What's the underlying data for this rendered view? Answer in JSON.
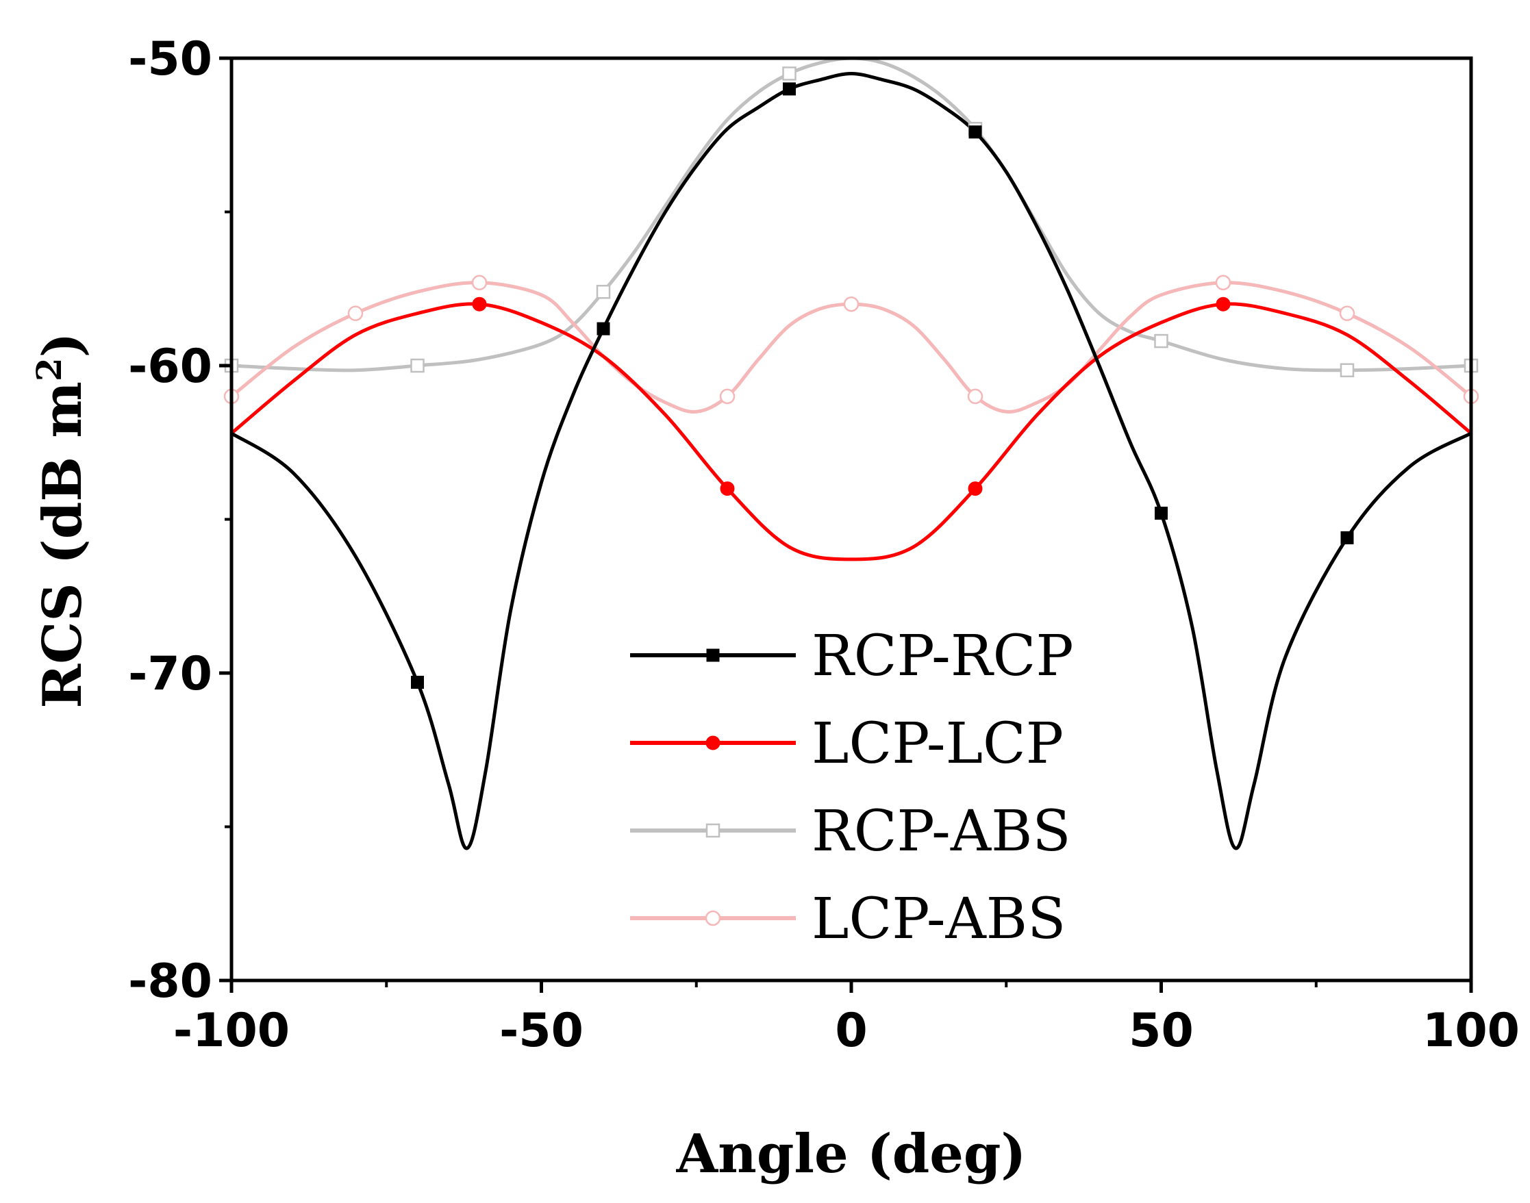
{
  "chart_data": {
    "type": "line",
    "title": "",
    "xlabel": "Angle (deg)",
    "ylabel_main": "RCS (dB m",
    "ylabel_sup": "2",
    "ylabel_close": ")",
    "xlim": [
      -100,
      100
    ],
    "ylim": [
      -80,
      -50
    ],
    "x_ticks": [
      -100,
      -50,
      0,
      50,
      100
    ],
    "x_tick_labels": [
      "-100",
      "-50",
      "0",
      "50",
      "100"
    ],
    "y_ticks": [
      -80,
      -70,
      -60,
      -50
    ],
    "y_tick_labels": [
      "-80",
      "-70",
      "-60",
      "-50"
    ],
    "legend_position": "lower-center",
    "series": [
      {
        "name": "RCP-RCP",
        "color": "#000000",
        "marker": "filled-square",
        "curve": [
          [
            -100,
            -62.2
          ],
          [
            -90,
            -63.5
          ],
          [
            -80,
            -66.2
          ],
          [
            -70,
            -70.3
          ],
          [
            -65,
            -73.6
          ],
          [
            -62,
            -75.7
          ],
          [
            -59,
            -73.2
          ],
          [
            -55,
            -68.0
          ],
          [
            -50,
            -63.8
          ],
          [
            -45,
            -61.0
          ],
          [
            -40,
            -58.8
          ],
          [
            -35,
            -56.8
          ],
          [
            -30,
            -55.0
          ],
          [
            -25,
            -53.5
          ],
          [
            -20,
            -52.3
          ],
          [
            -15,
            -51.6
          ],
          [
            -10,
            -51.0
          ],
          [
            -5,
            -50.7
          ],
          [
            0,
            -50.5
          ],
          [
            5,
            -50.7
          ],
          [
            10,
            -51.0
          ],
          [
            15,
            -51.6
          ],
          [
            20,
            -52.4
          ],
          [
            25,
            -53.7
          ],
          [
            30,
            -55.5
          ],
          [
            35,
            -57.6
          ],
          [
            40,
            -60.0
          ],
          [
            45,
            -62.5
          ],
          [
            50,
            -64.8
          ],
          [
            55,
            -68.5
          ],
          [
            59,
            -73.2
          ],
          [
            62,
            -75.7
          ],
          [
            65,
            -73.6
          ],
          [
            70,
            -69.5
          ],
          [
            80,
            -65.6
          ],
          [
            90,
            -63.3
          ],
          [
            100,
            -62.2
          ]
        ],
        "markers": [
          [
            -70,
            -70.3
          ],
          [
            -40,
            -58.8
          ],
          [
            -10,
            -51.0
          ],
          [
            20,
            -52.4
          ],
          [
            50,
            -64.8
          ],
          [
            80,
            -65.6
          ]
        ]
      },
      {
        "name": "LCP-LCP",
        "color": "#ff0000",
        "marker": "filled-circle",
        "curve": [
          [
            -100,
            -62.2
          ],
          [
            -90,
            -60.5
          ],
          [
            -80,
            -59.0
          ],
          [
            -70,
            -58.3
          ],
          [
            -60,
            -58.0
          ],
          [
            -50,
            -58.6
          ],
          [
            -40,
            -59.7
          ],
          [
            -30,
            -61.6
          ],
          [
            -20,
            -64.0
          ],
          [
            -10,
            -65.9
          ],
          [
            0,
            -66.3
          ],
          [
            10,
            -65.9
          ],
          [
            20,
            -64.0
          ],
          [
            30,
            -61.6
          ],
          [
            40,
            -59.7
          ],
          [
            50,
            -58.6
          ],
          [
            60,
            -58.0
          ],
          [
            70,
            -58.3
          ],
          [
            80,
            -59.0
          ],
          [
            90,
            -60.5
          ],
          [
            100,
            -62.2
          ]
        ],
        "markers": [
          [
            -60,
            -58.0
          ],
          [
            -20,
            -64.0
          ],
          [
            20,
            -64.0
          ],
          [
            60,
            -58.0
          ]
        ]
      },
      {
        "name": "RCP-ABS",
        "color": "#c0c0c0",
        "marker": "open-square",
        "curve": [
          [
            -100,
            -60.0
          ],
          [
            -90,
            -60.1
          ],
          [
            -80,
            -60.15
          ],
          [
            -70,
            -60.0
          ],
          [
            -60,
            -59.8
          ],
          [
            -50,
            -59.3
          ],
          [
            -45,
            -58.7
          ],
          [
            -40,
            -57.6
          ],
          [
            -35,
            -56.3
          ],
          [
            -30,
            -54.8
          ],
          [
            -25,
            -53.3
          ],
          [
            -20,
            -52.0
          ],
          [
            -15,
            -51.1
          ],
          [
            -10,
            -50.5
          ],
          [
            -5,
            -50.15
          ],
          [
            0,
            -50.0
          ],
          [
            5,
            -50.15
          ],
          [
            10,
            -50.6
          ],
          [
            15,
            -51.3
          ],
          [
            20,
            -52.3
          ],
          [
            25,
            -53.7
          ],
          [
            30,
            -55.4
          ],
          [
            35,
            -57.1
          ],
          [
            40,
            -58.3
          ],
          [
            45,
            -58.9
          ],
          [
            50,
            -59.2
          ],
          [
            60,
            -59.8
          ],
          [
            70,
            -60.1
          ],
          [
            80,
            -60.15
          ],
          [
            90,
            -60.1
          ],
          [
            100,
            -60.0
          ]
        ],
        "markers": [
          [
            -100,
            -60.0
          ],
          [
            -70,
            -60.0
          ],
          [
            -40,
            -57.6
          ],
          [
            -10,
            -50.5
          ],
          [
            20,
            -52.3
          ],
          [
            50,
            -59.2
          ],
          [
            80,
            -60.15
          ],
          [
            100,
            -60.0
          ]
        ]
      },
      {
        "name": "LCP-ABS",
        "color": "#f5b7b7",
        "marker": "open-circle",
        "curve": [
          [
            -100,
            -61.0
          ],
          [
            -90,
            -59.4
          ],
          [
            -80,
            -58.3
          ],
          [
            -70,
            -57.6
          ],
          [
            -60,
            -57.3
          ],
          [
            -50,
            -57.7
          ],
          [
            -45,
            -58.6
          ],
          [
            -40,
            -59.7
          ],
          [
            -35,
            -60.6
          ],
          [
            -30,
            -61.2
          ],
          [
            -25,
            -61.5
          ],
          [
            -20,
            -61.0
          ],
          [
            -15,
            -59.8
          ],
          [
            -10,
            -58.7
          ],
          [
            -5,
            -58.15
          ],
          [
            0,
            -58.0
          ],
          [
            5,
            -58.15
          ],
          [
            10,
            -58.7
          ],
          [
            15,
            -59.8
          ],
          [
            20,
            -61.0
          ],
          [
            25,
            -61.5
          ],
          [
            30,
            -61.2
          ],
          [
            35,
            -60.6
          ],
          [
            40,
            -59.5
          ],
          [
            45,
            -58.4
          ],
          [
            50,
            -57.7
          ],
          [
            60,
            -57.3
          ],
          [
            70,
            -57.6
          ],
          [
            80,
            -58.3
          ],
          [
            90,
            -59.4
          ],
          [
            100,
            -61.0
          ]
        ],
        "markers": [
          [
            -100,
            -61.0
          ],
          [
            -80,
            -58.3
          ],
          [
            -60,
            -57.3
          ],
          [
            -20,
            -61.0
          ],
          [
            0,
            -58.0
          ],
          [
            20,
            -61.0
          ],
          [
            60,
            -57.3
          ],
          [
            80,
            -58.3
          ],
          [
            100,
            -61.0
          ]
        ]
      }
    ]
  }
}
